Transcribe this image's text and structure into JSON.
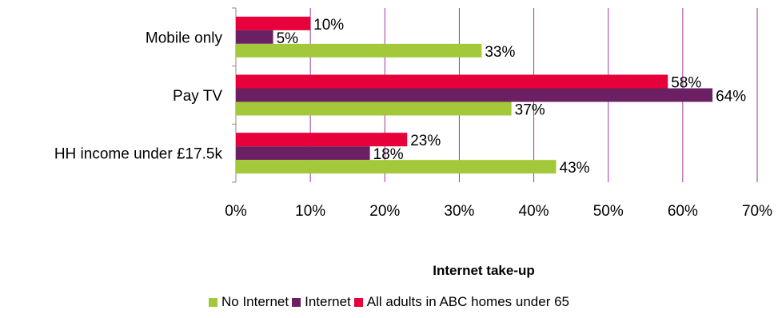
{
  "chart_data": {
    "type": "bar",
    "orientation": "horizontal",
    "title": "Internet take-up",
    "categories": [
      "Mobile only",
      "Pay TV",
      "HH income under £17.5k"
    ],
    "series": [
      {
        "name": "All adults in ABC homes under 65",
        "color": "#E8003A",
        "values": [
          10,
          58,
          23
        ],
        "labels": [
          "10%",
          "58%",
          "23%"
        ]
      },
      {
        "name": "Internet",
        "color": "#6B2063",
        "values": [
          5,
          64,
          18
        ],
        "labels": [
          "5%",
          "64%",
          "18%"
        ]
      },
      {
        "name": "No Internet",
        "color": "#A3C93A",
        "values": [
          33,
          37,
          43
        ],
        "labels": [
          "33%",
          "37%",
          "43%"
        ]
      }
    ],
    "xlim": [
      0,
      70
    ],
    "xticks": [
      "0%",
      "10%",
      "20%",
      "30%",
      "40%",
      "50%",
      "60%",
      "70%"
    ],
    "grid": true,
    "gridline_color": "#9A3A9A",
    "legend_position": "bottom",
    "legend_order": [
      "No Internet",
      "Internet",
      "All adults in ABC homes under 65"
    ]
  }
}
